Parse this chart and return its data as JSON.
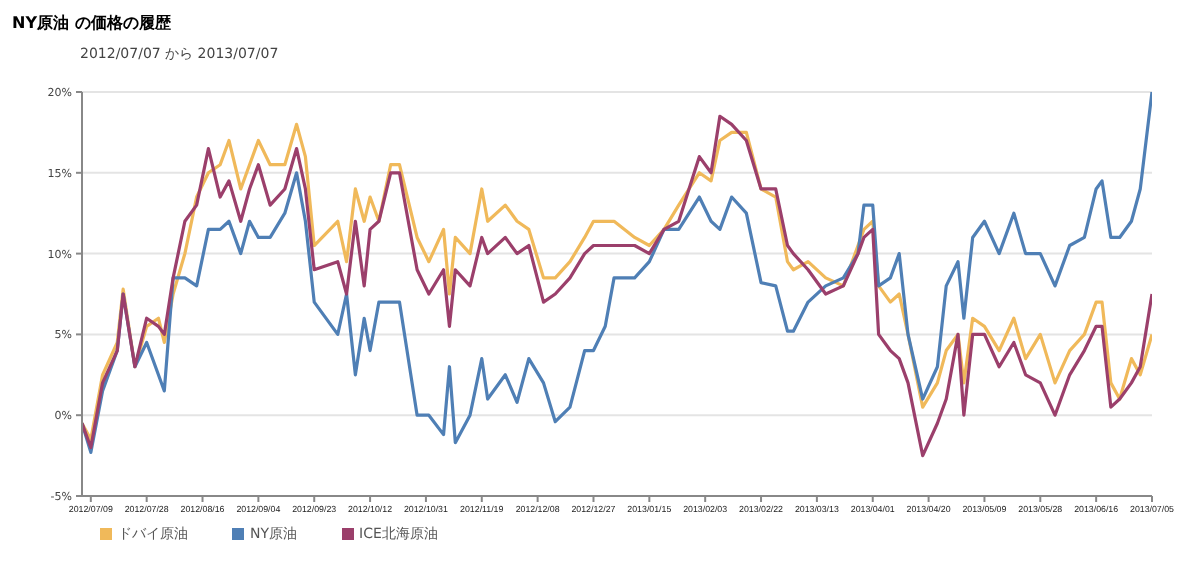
{
  "chart_data": {
    "type": "line",
    "title": "NY原油 の価格の履歴",
    "subtitle": "2012/07/07 から 2013/07/07",
    "x": [
      "2012-07-06",
      "2012-07-09",
      "2012-07-13",
      "2012-07-18",
      "2012-07-20",
      "2012-07-24",
      "2012-07-28",
      "2012-08-01",
      "2012-08-03",
      "2012-08-06",
      "2012-08-10",
      "2012-08-14",
      "2012-08-18",
      "2012-08-22",
      "2012-08-25",
      "2012-08-29",
      "2012-09-01",
      "2012-09-04",
      "2012-09-08",
      "2012-09-13",
      "2012-09-17",
      "2012-09-20",
      "2012-09-23",
      "2012-10-01",
      "2012-10-04",
      "2012-10-07",
      "2012-10-10",
      "2012-10-12",
      "2012-10-15",
      "2012-10-19",
      "2012-10-22",
      "2012-10-28",
      "2012-11-01",
      "2012-11-06",
      "2012-11-08",
      "2012-11-10",
      "2012-11-15",
      "2012-11-19",
      "2012-11-21",
      "2012-11-27",
      "2012-12-01",
      "2012-12-05",
      "2012-12-10",
      "2012-12-14",
      "2012-12-19",
      "2012-12-24",
      "2012-12-27",
      "2012-12-31",
      "2013-01-03",
      "2013-01-10",
      "2013-01-15",
      "2013-01-20",
      "2013-01-25",
      "2013-02-01",
      "2013-02-05",
      "2013-02-08",
      "2013-02-12",
      "2013-02-17",
      "2013-02-22",
      "2013-02-27",
      "2013-03-03",
      "2013-03-05",
      "2013-03-10",
      "2013-03-16",
      "2013-03-22",
      "2013-03-27",
      "2013-03-29",
      "2013-04-01",
      "2013-04-03",
      "2013-04-07",
      "2013-04-10",
      "2013-04-13",
      "2013-04-18",
      "2013-04-23",
      "2013-04-26",
      "2013-04-30",
      "2013-05-02",
      "2013-05-05",
      "2013-05-09",
      "2013-05-14",
      "2013-05-19",
      "2013-05-23",
      "2013-05-28",
      "2013-06-02",
      "2013-06-07",
      "2013-06-12",
      "2013-06-16",
      "2013-06-18",
      "2013-06-21",
      "2013-06-24",
      "2013-06-28",
      "2013-07-01",
      "2013-07-05"
    ],
    "series": [
      {
        "name": "ドバイ原油",
        "color": "#f0b95a",
        "values": [
          -0.5,
          -1.5,
          2.5,
          4.5,
          7.8,
          3,
          5.5,
          6,
          4.5,
          7.5,
          10,
          13.5,
          15,
          15.5,
          17,
          14,
          15.5,
          17,
          15.5,
          15.5,
          18,
          16,
          10.5,
          12,
          9.5,
          14,
          12,
          13.5,
          12,
          15.5,
          15.5,
          11,
          9.5,
          11.5,
          7.5,
          11,
          10,
          14,
          12,
          13,
          12,
          11.5,
          8.5,
          8.5,
          9.5,
          11,
          12,
          12,
          12,
          11,
          10.5,
          11.5,
          13,
          15,
          14.5,
          17,
          17.5,
          17.5,
          14,
          13.5,
          9.5,
          9,
          9.5,
          8.5,
          8,
          10.5,
          11.5,
          12,
          8,
          7,
          7.5,
          5,
          0.5,
          2,
          4,
          5,
          2,
          6,
          5.5,
          4,
          6,
          3.5,
          5,
          2,
          4,
          5,
          7,
          7,
          2,
          1,
          3.5,
          2.5,
          5
        ]
      },
      {
        "name": "NY原油",
        "color": "#4f7fb5",
        "values": [
          -0.5,
          -2.3,
          1.5,
          4,
          7.5,
          3,
          4.5,
          2.5,
          1.5,
          8.5,
          8.5,
          8,
          11.5,
          11.5,
          12,
          10,
          12,
          11,
          11,
          12.5,
          15,
          12,
          7,
          5,
          7.5,
          2.5,
          6,
          4,
          7,
          7,
          7,
          0,
          0,
          -1.2,
          3,
          -1.7,
          0,
          3.5,
          1,
          2.5,
          0.8,
          3.5,
          2,
          -0.4,
          0.5,
          4,
          4,
          5.5,
          8.5,
          8.5,
          9.5,
          11.5,
          11.5,
          13.5,
          12,
          11.5,
          13.5,
          12.5,
          8.2,
          8,
          5.2,
          5.2,
          7,
          8,
          8.5,
          10,
          13,
          13,
          8,
          8.5,
          10,
          5,
          1,
          3,
          8,
          9.5,
          6,
          11,
          12,
          10,
          12.5,
          10,
          10,
          8,
          10.5,
          11,
          14,
          14.5,
          11,
          11,
          12,
          14,
          20
        ]
      },
      {
        "name": "ICE北海原油",
        "color": "#9b3f6b",
        "values": [
          -0.5,
          -2,
          2,
          4,
          7.5,
          3,
          6,
          5.5,
          5,
          8.5,
          12,
          13,
          16.5,
          13.5,
          14.5,
          12,
          14,
          15.5,
          13,
          14,
          16.5,
          14,
          9,
          9.5,
          7.5,
          12,
          8,
          11.5,
          12,
          15,
          15,
          9,
          7.5,
          9,
          5.5,
          9,
          8,
          11,
          10,
          11,
          10,
          10.5,
          7,
          7.5,
          8.5,
          10,
          10.5,
          10.5,
          10.5,
          10.5,
          10,
          11.5,
          12,
          16,
          15,
          18.5,
          18,
          17,
          14,
          14,
          10.5,
          10,
          9,
          7.5,
          8,
          10,
          11,
          11.5,
          5,
          4,
          3.5,
          2,
          -2.5,
          -0.5,
          1,
          5,
          0,
          5,
          5,
          3,
          4.5,
          2.5,
          2,
          0,
          2.5,
          4,
          5.5,
          5.5,
          0.5,
          1,
          2,
          3,
          7.5
        ]
      }
    ],
    "xlim": [
      "2012-07-06",
      "2013-07-05"
    ],
    "xticks": [
      {
        "value": "2012-07-09",
        "label": "2012/07/09"
      },
      {
        "value": "2012-07-28",
        "label": "2012/07/28"
      },
      {
        "value": "2012-08-16",
        "label": "2012/08/16"
      },
      {
        "value": "2012-09-04",
        "label": "2012/09/04"
      },
      {
        "value": "2012-09-23",
        "label": "2012/09/23"
      },
      {
        "value": "2012-10-12",
        "label": "2012/10/12"
      },
      {
        "value": "2012-10-31",
        "label": "2012/10/31"
      },
      {
        "value": "2012-11-19",
        "label": "2012/11/19"
      },
      {
        "value": "2012-12-08",
        "label": "2012/12/08"
      },
      {
        "value": "2012-12-27",
        "label": "2012/12/27"
      },
      {
        "value": "2013-01-15",
        "label": "2013/01/15"
      },
      {
        "value": "2013-02-03",
        "label": "2013/02/03"
      },
      {
        "value": "2013-02-22",
        "label": "2013/02/22"
      },
      {
        "value": "2013-03-13",
        "label": "2013/03/13"
      },
      {
        "value": "2013-04-01",
        "label": "2013/04/01"
      },
      {
        "value": "2013-04-20",
        "label": "2013/04/20"
      },
      {
        "value": "2013-05-09",
        "label": "2013/05/09"
      },
      {
        "value": "2013-05-28",
        "label": "2013/05/28"
      },
      {
        "value": "2013-06-16",
        "label": "2013/06/16"
      },
      {
        "value": "2013-07-05",
        "label": "2013/07/05"
      }
    ],
    "ylim": [
      -5,
      20
    ],
    "yticks": [
      {
        "value": -5,
        "label": "-5%"
      },
      {
        "value": 0,
        "label": "0%"
      },
      {
        "value": 5,
        "label": "5%"
      },
      {
        "value": 10,
        "label": "10%"
      },
      {
        "value": 15,
        "label": "15%"
      },
      {
        "value": 20,
        "label": "20%"
      }
    ],
    "grid": "y",
    "legend": "bottom left",
    "marker": "none",
    "line_style": "solid"
  }
}
